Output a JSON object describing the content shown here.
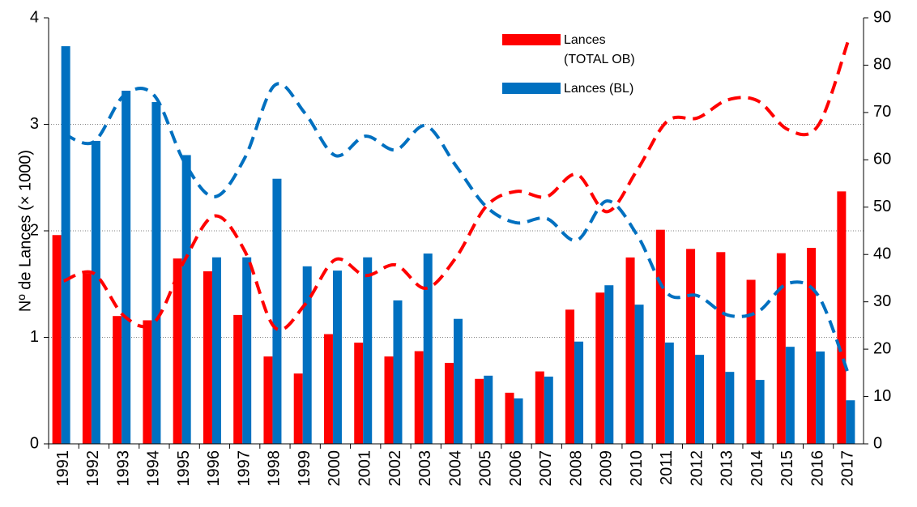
{
  "chart_data": {
    "type": "bar",
    "y_label": "Nº de Lances (× 1000)",
    "categories": [
      "1991",
      "1992",
      "1993",
      "1994",
      "1995",
      "1996",
      "1997",
      "1998",
      "1999",
      "2000",
      "2001",
      "2002",
      "2003",
      "2004",
      "2005",
      "2006",
      "2007",
      "2008",
      "2009",
      "2010",
      "2011",
      "2012",
      "2013",
      "2014",
      "2015",
      "2016",
      "2017"
    ],
    "series": [
      {
        "name": "Lances (TOTAL OB)",
        "color": "#ff0000",
        "axis": "y",
        "values": [
          1.96,
          1.6,
          1.2,
          1.16,
          1.74,
          1.62,
          1.21,
          0.82,
          0.66,
          1.03,
          0.95,
          0.82,
          0.87,
          0.76,
          0.61,
          0.48,
          0.68,
          1.26,
          1.42,
          1.75,
          2.01,
          1.83,
          1.8,
          1.54,
          1.79,
          1.84,
          2.37
        ],
        "trend": [
          1.53,
          1.6,
          1.2,
          1.14,
          1.72,
          2.14,
          1.81,
          1.09,
          1.31,
          1.73,
          1.58,
          1.68,
          1.46,
          1.75,
          2.23,
          2.37,
          2.32,
          2.53,
          2.18,
          2.57,
          3.03,
          3.06,
          3.23,
          3.22,
          2.95,
          2.99,
          3.79
        ]
      },
      {
        "name": "Lances (BL)",
        "color": "#0070c0",
        "axis": "y2",
        "values": [
          84,
          64,
          74.6,
          72.2,
          61,
          39.4,
          39.4,
          56,
          37.5,
          36.6,
          39.4,
          30.3,
          40.2,
          26.4,
          14.4,
          9.6,
          14.2,
          21.6,
          33.5,
          29.4,
          21.4,
          18.8,
          15.2,
          13.5,
          20.5,
          19.5,
          9.2
        ],
        "trend": [
          65.5,
          63.8,
          73.6,
          73.6,
          59.5,
          52.2,
          60.4,
          75.8,
          69.8,
          60.9,
          65,
          62.1,
          67.2,
          58.7,
          50.1,
          46.7,
          47.6,
          43,
          51.3,
          44.1,
          31.8,
          31.3,
          27.2,
          27.9,
          33.9,
          31.3,
          14.7
        ]
      }
    ],
    "ylim": [
      0,
      4
    ],
    "yticks": [
      0,
      1,
      2,
      3,
      4
    ],
    "y2lim": [
      0,
      90
    ],
    "y2ticks": [
      0,
      10,
      20,
      30,
      40,
      50,
      60,
      70,
      80,
      90
    ],
    "grid": true,
    "legend": "top-right"
  }
}
